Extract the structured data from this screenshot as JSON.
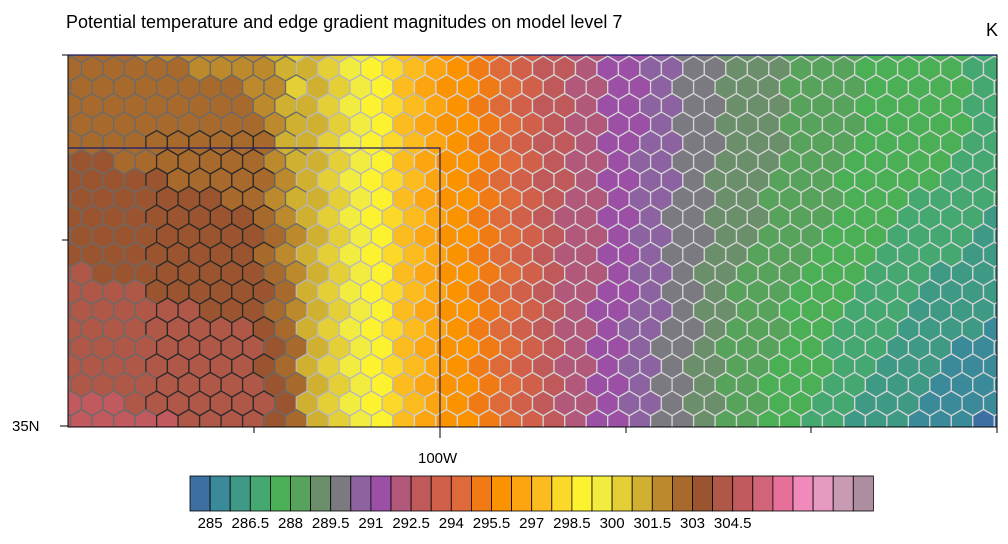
{
  "title": "Potential temperature and edge gradient magnitudes on model level 7",
  "units": "K",
  "lat_label": "35N",
  "lon_label": "100W",
  "colorbar": {
    "colors": [
      "#3d6fa3",
      "#3a8a9a",
      "#3f9a85",
      "#45a870",
      "#4aaf55",
      "#58a35c",
      "#6a8f6a",
      "#7a7a80",
      "#8c62a0",
      "#9b50a5",
      "#b2587a",
      "#c05a5a",
      "#d0604a",
      "#dd6a38",
      "#f07a14",
      "#fb9200",
      "#fca510",
      "#fcbc20",
      "#fcd828",
      "#fcf230",
      "#f2ec40",
      "#e4d036",
      "#d0b030",
      "#bc8a2c",
      "#a86a2c",
      "#9a5530",
      "#b05848",
      "#c05a5e",
      "#d06478",
      "#e6709a",
      "#f08abb",
      "#e69ac0",
      "#c89ab4",
      "#ac8ea0"
    ],
    "labels": [
      "285",
      "286.5",
      "288",
      "289.5",
      "291",
      "292.5",
      "294",
      "295.5",
      "297",
      "298.5",
      "300",
      "301.5",
      "303",
      "304.5"
    ]
  }
}
